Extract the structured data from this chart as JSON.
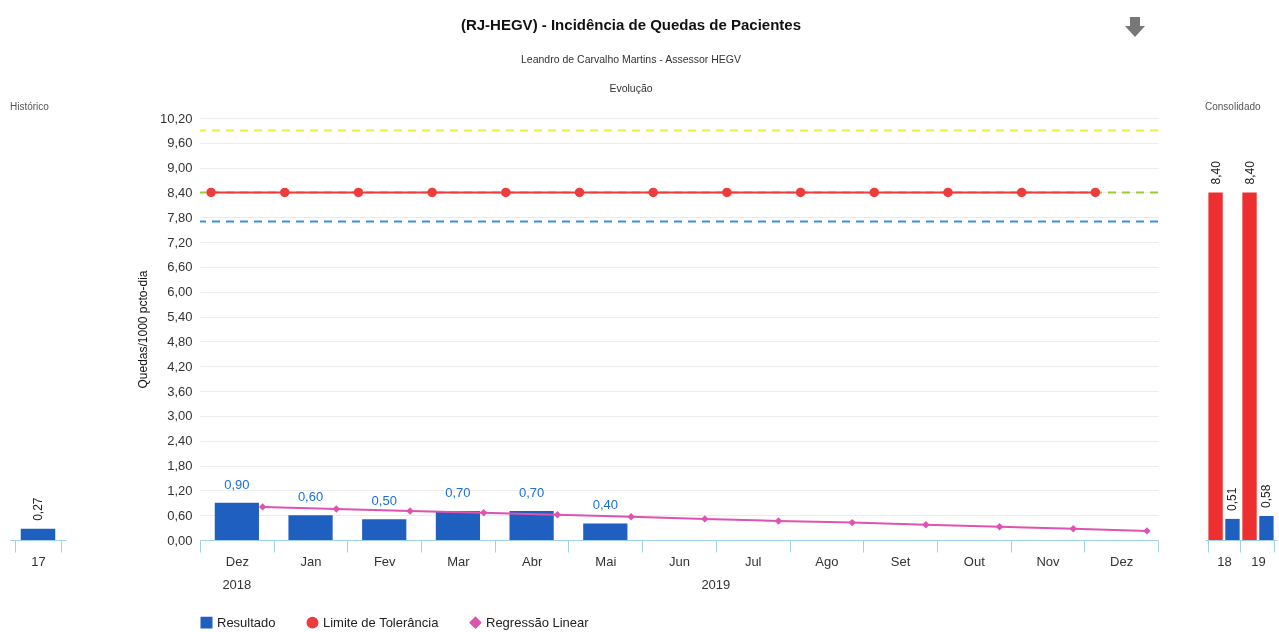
{
  "chart_data": [
    {
      "type": "bar",
      "title": "Histórico",
      "categories": [
        "17"
      ],
      "values": [
        0.27
      ],
      "value_labels": [
        "0,27"
      ],
      "color": "#1f5fbf"
    },
    {
      "type": "bar",
      "title": "(RJ-HEGV) - Incidência de Quedas de Pacientes",
      "subtitle": "Leandro de Carvalho Martins - Assessor HEGV",
      "ylabel": "Quedas/1000 pcto-dia",
      "annotations": [
        "Evolução",
        "2018",
        "2019"
      ],
      "categories": [
        "Dez",
        "Jan",
        "Fev",
        "Mar",
        "Abr",
        "Mai",
        "Jun",
        "Jul",
        "Ago",
        "Set",
        "Out",
        "Nov",
        "Dez"
      ],
      "series": [
        {
          "name": "Resultado",
          "type": "bar",
          "color": "#1f5fbf",
          "values": [
            0.9,
            0.6,
            0.5,
            0.7,
            0.7,
            0.4,
            null,
            null,
            null,
            null,
            null,
            null,
            null
          ],
          "value_labels": [
            "0,90",
            "0,60",
            "0,50",
            "0,70",
            "0,70",
            "0,40",
            null,
            null,
            null,
            null,
            null,
            null,
            null
          ]
        },
        {
          "name": "Limite de Tolerância",
          "type": "line",
          "marker": "circle",
          "color": "#ee3b3b",
          "values": [
            8.4,
            8.4,
            8.4,
            8.4,
            8.4,
            8.4,
            8.4,
            8.4,
            8.4,
            8.4,
            8.4,
            8.4,
            8.4
          ]
        },
        {
          "name": "Regressão Linear",
          "type": "line",
          "marker": "diamond",
          "color": "#e052b0",
          "values": [
            0.8,
            0.75,
            0.7,
            0.66,
            0.61,
            0.56,
            0.51,
            0.46,
            0.42,
            0.37,
            0.32,
            0.27,
            0.22
          ]
        }
      ],
      "ref_lines": [
        {
          "axis": "y",
          "value": 9.9,
          "color": "#eeee44",
          "line_style": "dashed"
        },
        {
          "axis": "y",
          "value": 8.4,
          "color": "#9acd32",
          "line_style": "dashed"
        },
        {
          "axis": "y",
          "value": 7.7,
          "color": "#3a8ee6",
          "line_style": "dashed"
        }
      ],
      "ylim": [
        0,
        10.2
      ],
      "yticks": [
        {
          "value": 0,
          "label": "0,00"
        },
        {
          "value": 0.6,
          "label": "0,60"
        },
        {
          "value": 1.2,
          "label": "1,20"
        },
        {
          "value": 1.8,
          "label": "1,80"
        },
        {
          "value": 2.4,
          "label": "2,40"
        },
        {
          "value": 3,
          "label": "3,00"
        },
        {
          "value": 3.6,
          "label": "3,60"
        },
        {
          "value": 4.2,
          "label": "4,20"
        },
        {
          "value": 4.8,
          "label": "4,80"
        },
        {
          "value": 5.4,
          "label": "5,40"
        },
        {
          "value": 6,
          "label": "6,00"
        },
        {
          "value": 6.6,
          "label": "6,60"
        },
        {
          "value": 7.2,
          "label": "7,20"
        },
        {
          "value": 7.8,
          "label": "7,80"
        },
        {
          "value": 8.4,
          "label": "8,40"
        },
        {
          "value": 9,
          "label": "9,00"
        },
        {
          "value": 9.6,
          "label": "9,60"
        },
        {
          "value": 10.2,
          "label": "10,20"
        }
      ],
      "grid": "y",
      "legend": "bottom"
    },
    {
      "type": "bar",
      "title": "Consolidado",
      "categories": [
        "18",
        "19"
      ],
      "series": [
        {
          "color": "#ee2f2f",
          "values": [
            8.4,
            8.4
          ],
          "value_labels": [
            "8,40",
            "8,40"
          ]
        },
        {
          "color": "#1f5fbf",
          "values": [
            0.51,
            0.58
          ],
          "value_labels": [
            "0,51",
            "0,58"
          ]
        }
      ]
    }
  ]
}
